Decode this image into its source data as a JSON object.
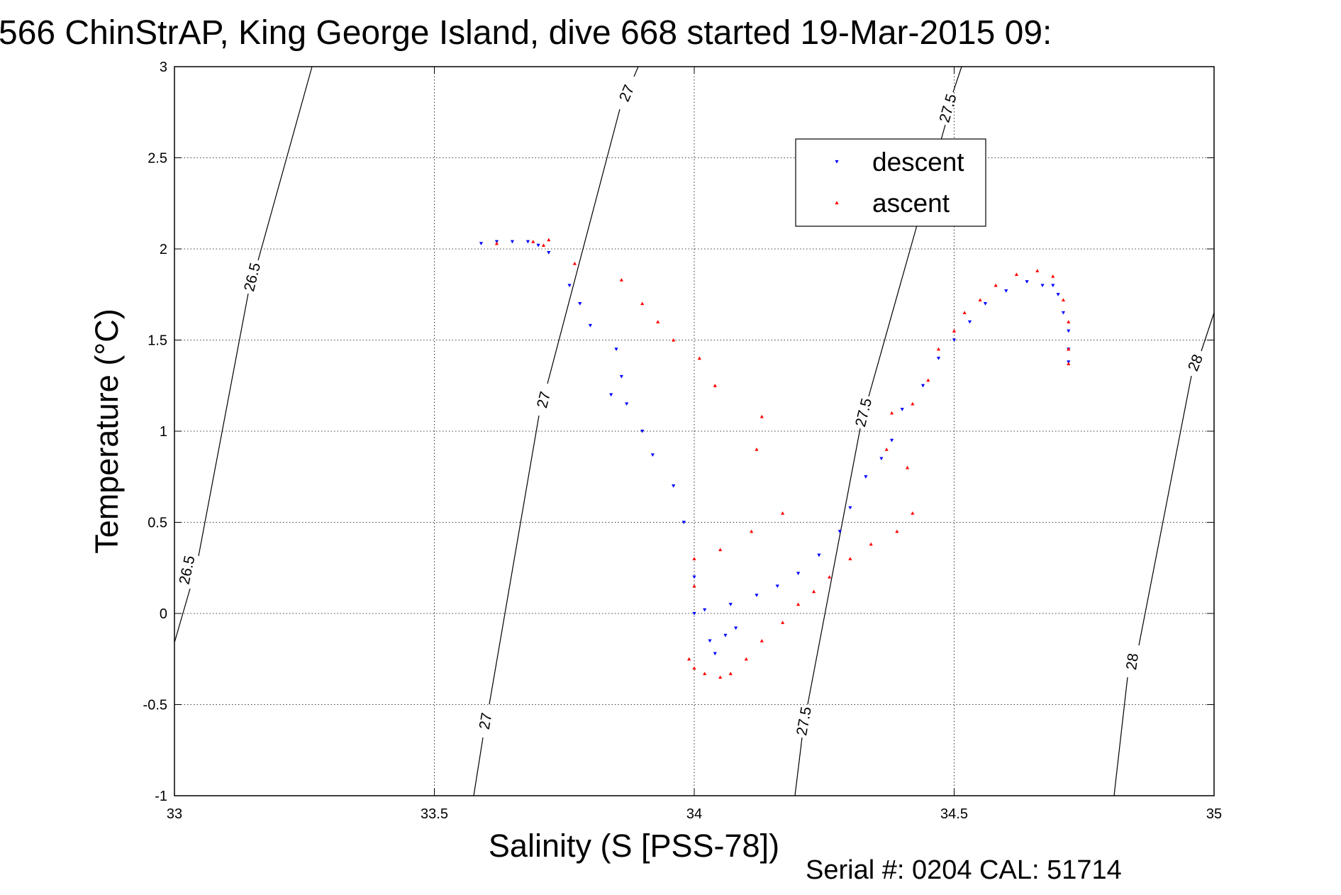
{
  "chart_data": {
    "type": "scatter",
    "title": "566 ChinStrAP, King George Island, dive 668 started 19-Mar-2015 09:",
    "xlabel": "Salinity (S [PSS-78])",
    "ylabel": "Temperature (°C)",
    "xlim": [
      33,
      35
    ],
    "ylim": [
      -1,
      3
    ],
    "x_ticks": [
      "33",
      "33.5",
      "34",
      "34.5",
      "35"
    ],
    "y_ticks": [
      "-1",
      "-0.5",
      "0",
      "0.5",
      "1",
      "1.5",
      "2",
      "2.5",
      "3"
    ],
    "grid": true,
    "legend_position": "top-right",
    "footer": "Serial #: 0204  CAL: 51714",
    "series": [
      {
        "name": "descent",
        "color": "#0000ff",
        "marker": "triangle-down",
        "points": [
          [
            33.59,
            2.03
          ],
          [
            33.62,
            2.04
          ],
          [
            33.65,
            2.04
          ],
          [
            33.68,
            2.04
          ],
          [
            33.7,
            2.02
          ],
          [
            33.72,
            1.98
          ],
          [
            33.76,
            1.8
          ],
          [
            33.78,
            1.7
          ],
          [
            33.8,
            1.58
          ],
          [
            33.85,
            1.45
          ],
          [
            33.86,
            1.3
          ],
          [
            33.84,
            1.2
          ],
          [
            33.87,
            1.15
          ],
          [
            33.9,
            1.0
          ],
          [
            33.92,
            0.87
          ],
          [
            33.96,
            0.7
          ],
          [
            33.98,
            0.5
          ],
          [
            34.0,
            0.2
          ],
          [
            34.0,
            0.0
          ],
          [
            34.02,
            0.02
          ],
          [
            34.03,
            -0.15
          ],
          [
            34.04,
            -0.22
          ],
          [
            34.06,
            -0.12
          ],
          [
            34.08,
            -0.08
          ],
          [
            34.07,
            0.05
          ],
          [
            34.12,
            0.1
          ],
          [
            34.16,
            0.15
          ],
          [
            34.2,
            0.22
          ],
          [
            34.24,
            0.32
          ],
          [
            34.28,
            0.45
          ],
          [
            34.3,
            0.58
          ],
          [
            34.33,
            0.75
          ],
          [
            34.36,
            0.85
          ],
          [
            34.38,
            0.95
          ],
          [
            34.4,
            1.12
          ],
          [
            34.44,
            1.25
          ],
          [
            34.47,
            1.4
          ],
          [
            34.5,
            1.5
          ],
          [
            34.53,
            1.6
          ],
          [
            34.56,
            1.7
          ],
          [
            34.6,
            1.77
          ],
          [
            34.64,
            1.82
          ],
          [
            34.67,
            1.8
          ],
          [
            34.69,
            1.8
          ],
          [
            34.7,
            1.75
          ],
          [
            34.71,
            1.65
          ],
          [
            34.72,
            1.55
          ],
          [
            34.72,
            1.45
          ],
          [
            34.72,
            1.38
          ]
        ]
      },
      {
        "name": "ascent",
        "color": "#ff0000",
        "marker": "triangle-up",
        "points": [
          [
            33.62,
            2.03
          ],
          [
            33.69,
            2.04
          ],
          [
            33.72,
            2.05
          ],
          [
            33.71,
            2.02
          ],
          [
            33.77,
            1.92
          ],
          [
            33.86,
            1.83
          ],
          [
            33.9,
            1.7
          ],
          [
            33.93,
            1.6
          ],
          [
            33.96,
            1.5
          ],
          [
            34.01,
            1.4
          ],
          [
            34.04,
            1.25
          ],
          [
            34.13,
            1.08
          ],
          [
            34.12,
            0.9
          ],
          [
            34.17,
            0.55
          ],
          [
            34.11,
            0.45
          ],
          [
            34.05,
            0.35
          ],
          [
            34.0,
            0.3
          ],
          [
            34.0,
            0.15
          ],
          [
            33.99,
            -0.25
          ],
          [
            34.0,
            -0.3
          ],
          [
            34.02,
            -0.33
          ],
          [
            34.05,
            -0.35
          ],
          [
            34.07,
            -0.33
          ],
          [
            34.1,
            -0.25
          ],
          [
            34.13,
            -0.15
          ],
          [
            34.17,
            -0.05
          ],
          [
            34.2,
            0.05
          ],
          [
            34.23,
            0.12
          ],
          [
            34.26,
            0.2
          ],
          [
            34.3,
            0.3
          ],
          [
            34.34,
            0.38
          ],
          [
            34.39,
            0.45
          ],
          [
            34.42,
            0.55
          ],
          [
            34.41,
            0.8
          ],
          [
            34.37,
            0.9
          ],
          [
            34.38,
            1.1
          ],
          [
            34.42,
            1.15
          ],
          [
            34.45,
            1.28
          ],
          [
            34.47,
            1.45
          ],
          [
            34.5,
            1.55
          ],
          [
            34.52,
            1.65
          ],
          [
            34.55,
            1.72
          ],
          [
            34.58,
            1.8
          ],
          [
            34.62,
            1.86
          ],
          [
            34.66,
            1.88
          ],
          [
            34.69,
            1.85
          ],
          [
            34.71,
            1.72
          ],
          [
            34.72,
            1.6
          ],
          [
            34.72,
            1.45
          ],
          [
            34.72,
            1.37
          ]
        ]
      }
    ],
    "isopycnals": [
      {
        "label": "26.5"
      },
      {
        "label": "27"
      },
      {
        "label": "27.5"
      },
      {
        "label": "28"
      }
    ]
  }
}
